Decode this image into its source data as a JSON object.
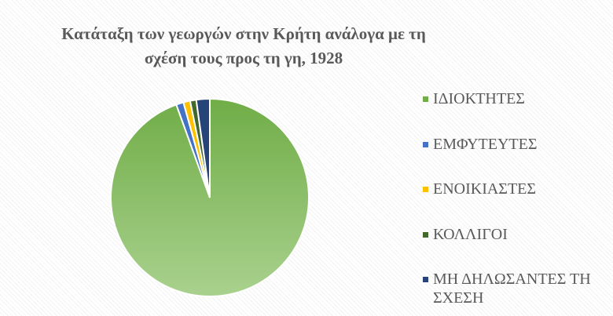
{
  "chart_data": {
    "type": "pie",
    "title": "Κατάταξη των γεωργών στην Κρήτη ανάλογα με τη σχέση τους προς τη γη, 1928",
    "categories": [
      "ΙΔΙΟΚΤΗΤΕΣ",
      "ΕΜΦΥΤΕΥΤΕΣ",
      "ΕΝΟΙΚΙΑΣΤΕΣ",
      "ΚΟΛΛΙΓΟΙ",
      "ΜΗ ΔΗΛΩΣΑΝΤΕΣ ΤΗ ΣΧΕΣΗ"
    ],
    "values": [
      94.5,
      1.2,
      1.1,
      1.0,
      2.2
    ],
    "colors": [
      "#70ad47",
      "#4472c4",
      "#ffc000",
      "#43682b",
      "#264478"
    ],
    "legend": "right"
  }
}
